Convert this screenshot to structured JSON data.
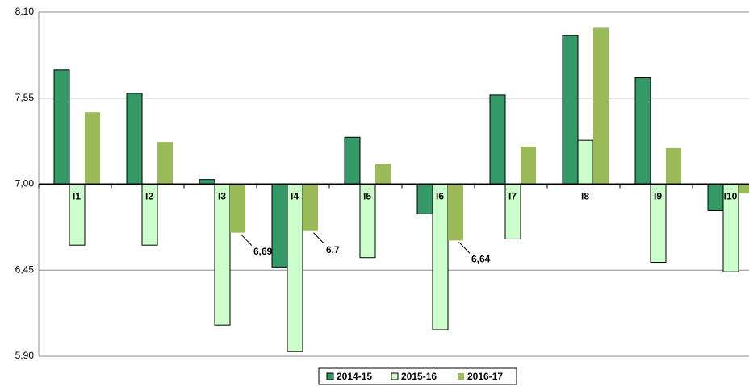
{
  "chart_data": {
    "type": "bar",
    "categories": [
      "I1",
      "I2",
      "I3",
      "I4",
      "I5",
      "I6",
      "I7",
      "I8",
      "I9",
      "I10"
    ],
    "baseline": 7.0,
    "series": [
      {
        "name": "2014-15",
        "color": "#339966",
        "values": [
          7.73,
          7.58,
          7.03,
          6.47,
          7.3,
          6.81,
          7.57,
          7.95,
          7.68,
          6.83
        ]
      },
      {
        "name": "2015-16",
        "color": "#ccffcc",
        "values": [
          6.61,
          6.61,
          6.1,
          5.93,
          6.53,
          6.07,
          6.65,
          7.28,
          6.5,
          6.44
        ]
      },
      {
        "name": "2016-17",
        "color": "#9bbb59",
        "values": [
          7.46,
          7.27,
          6.69,
          6.7,
          7.13,
          6.64,
          7.24,
          8.0,
          7.23,
          6.94
        ],
        "value_labels": [
          null,
          null,
          "6,69",
          "6,7",
          null,
          "6,64",
          null,
          null,
          null,
          null
        ]
      }
    ],
    "ylim": [
      5.9,
      8.1
    ],
    "yticks": [
      {
        "value": 5.9,
        "label": "5,90"
      },
      {
        "value": 6.45,
        "label": "6,45"
      },
      {
        "value": 7.0,
        "label": "7,00"
      },
      {
        "value": 7.55,
        "label": "7,55"
      },
      {
        "value": 8.1,
        "label": "8,10"
      }
    ],
    "grid": true,
    "legend": "bottom"
  }
}
